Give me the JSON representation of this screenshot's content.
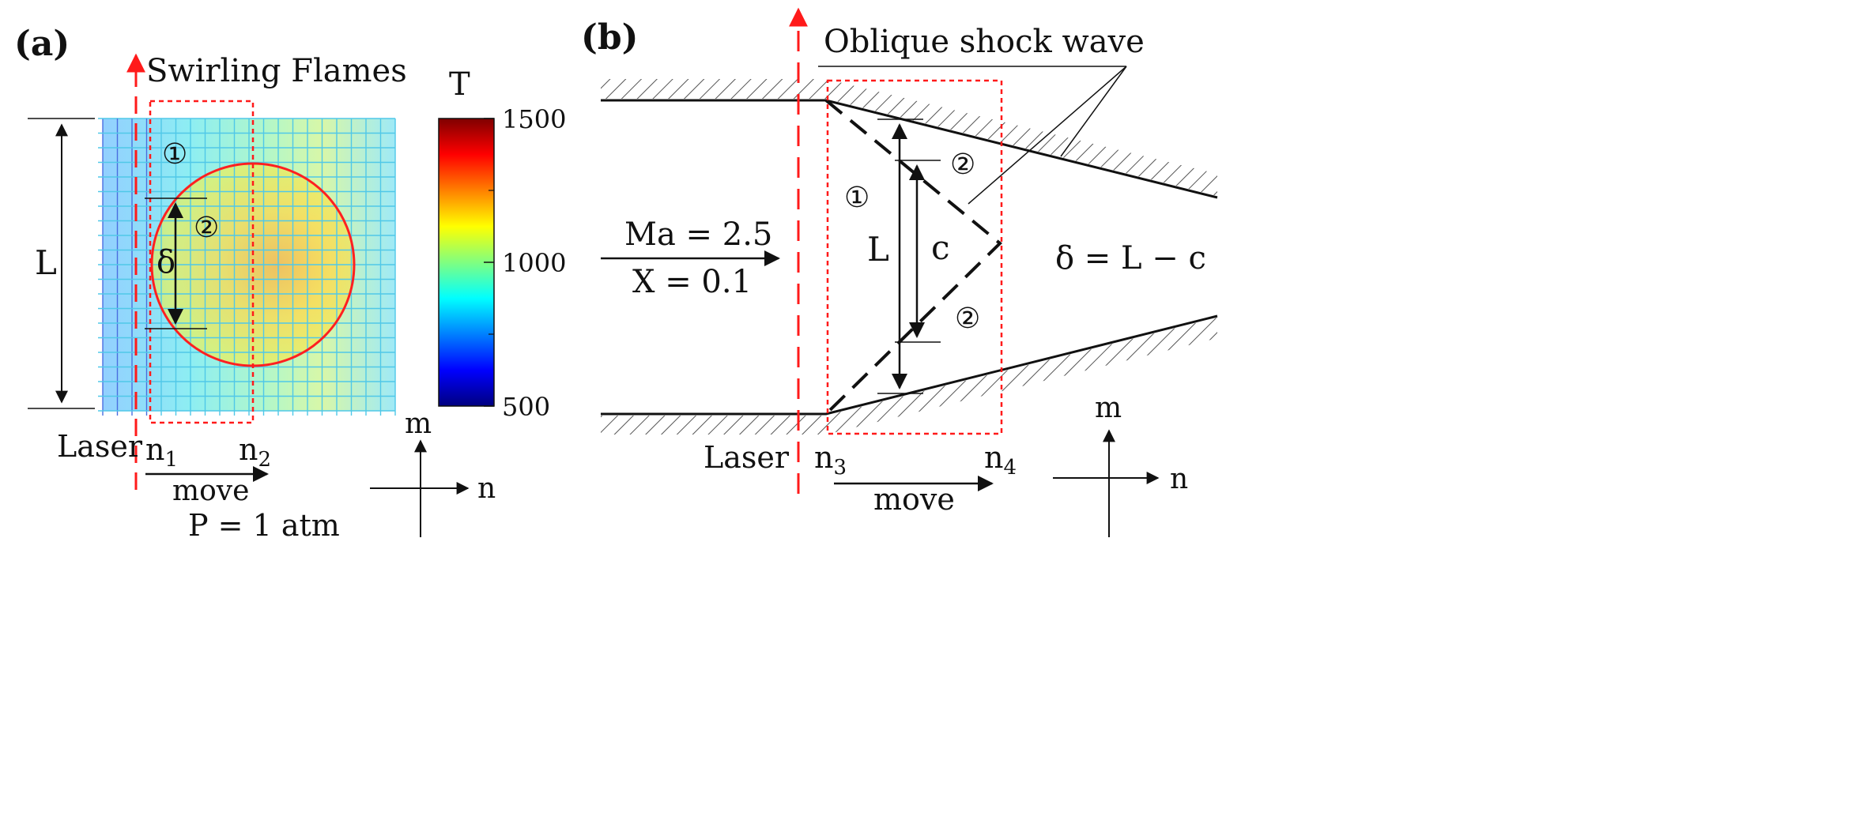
{
  "panel_a": {
    "label": "(a)",
    "title": "Swirling Flames",
    "colorbar": {
      "title": "T",
      "ticks": [
        "1500",
        "1000",
        "500"
      ],
      "stops": [
        "#00007f",
        "#0000ff",
        "#0080ff",
        "#00ffff",
        "#80ff80",
        "#ffff00",
        "#ff8000",
        "#ff0000",
        "#7f0000"
      ]
    },
    "length_label": "L",
    "delta_label": "δ",
    "region_1": "①",
    "region_2": "②",
    "laser_label": "Laser",
    "n1": "n",
    "n1_sub": "1",
    "n2": "n",
    "n2_sub": "2",
    "move_label": "move",
    "pressure_label": "P = 1 atm",
    "axis_m": "m",
    "axis_n": "n"
  },
  "panel_b": {
    "label": "(b)",
    "title": "Oblique shock wave",
    "region_1": "①",
    "region_2": "②",
    "length_label": "L",
    "c_label": "c",
    "mach_label": "Ma = 2.5",
    "x_label": "X = 0.1",
    "delta_formula": "δ = L − c",
    "laser_label": "Laser",
    "n3": "n",
    "n3_sub": "3",
    "n4": "n",
    "n4_sub": "4",
    "move_label": "move",
    "axis_m": "m",
    "axis_n": "n"
  },
  "colors": {
    "laser": "#ff1a1a",
    "window": "#ff1a1a",
    "flame_circle": "#ff2020",
    "ink": "#111111"
  }
}
